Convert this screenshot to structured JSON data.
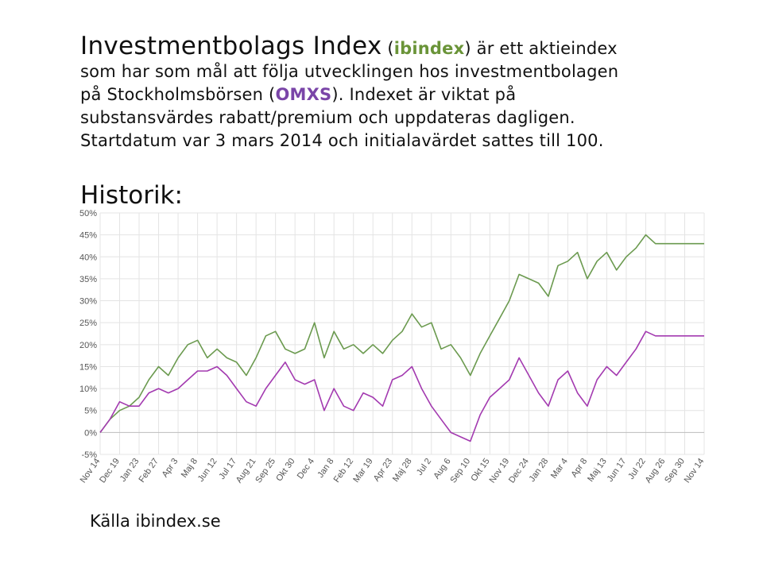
{
  "intro": {
    "title": "Investmentbolags Index",
    "paren_open": " (",
    "ibindex": "ibindex",
    "text1": ") är ett aktieindex",
    "line2": "som har som mål att följa utvecklingen hos investmentbolagen",
    "line3_pre": "på Stockholmsbörsen (",
    "omxs": "OMXS",
    "line3_post": "). Indexet är viktat på",
    "line4": "substansvärdes rabatt/premium och uppdateras dagligen.",
    "line5": "Startdatum var 3 mars 2014 och initialavärdet sattes till 100."
  },
  "heading": "Historik:",
  "source": "Källa ibindex.se",
  "colors": {
    "green": "#6a9438",
    "purple": "#7a45a8",
    "series_green": "#6b9a4f",
    "series_magenta": "#a33ab0"
  },
  "chart_data": {
    "type": "line",
    "ylim": [
      -5,
      50
    ],
    "yticks": [
      "50%",
      "45%",
      "40%",
      "35%",
      "30%",
      "25%",
      "20%",
      "15%",
      "10%",
      "5%",
      "0%",
      "-5%"
    ],
    "categories": [
      "Nov 14",
      "Dec 19",
      "Jan 23",
      "Feb 27",
      "Apr 3",
      "Maj 8",
      "Jun 12",
      "Jul 17",
      "Aug 21",
      "Sep 25",
      "Okt 30",
      "Dec 4",
      "Jan 8",
      "Feb 12",
      "Mar 19",
      "Apr 23",
      "Maj 28",
      "Jul 2",
      "Aug 6",
      "Sep 10",
      "Okt 15",
      "Nov 19",
      "Dec 24",
      "Jan 28",
      "Mar 4",
      "Apr 8",
      "Maj 13",
      "Jun 17",
      "Jul 22",
      "Aug 26",
      "Sep 30",
      "Nov 14"
    ],
    "grid": true,
    "series": [
      {
        "color": "#6b9a4f",
        "x": [
          0,
          0.5,
          1,
          1.5,
          2,
          2.5,
          3,
          3.5,
          4,
          4.5,
          5,
          5.5,
          6,
          6.5,
          7,
          7.5,
          8,
          8.5,
          9,
          9.5,
          10,
          10.5,
          11,
          11.5,
          12,
          12.5,
          13,
          13.5,
          14,
          14.5,
          15,
          15.5,
          16,
          16.5,
          17,
          17.5,
          18,
          18.5,
          19,
          19.5,
          20,
          20.5,
          21,
          21.5,
          22,
          22.5,
          23,
          23.5,
          24,
          24.5,
          25,
          25.5,
          26,
          26.5,
          27,
          27.5,
          28,
          28.5,
          29,
          29.5,
          30,
          30.5,
          31
        ],
        "values": [
          0,
          3,
          5,
          6,
          8,
          12,
          15,
          13,
          17,
          20,
          21,
          17,
          19,
          17,
          16,
          13,
          17,
          22,
          23,
          19,
          18,
          19,
          25,
          17,
          23,
          19,
          20,
          18,
          20,
          18,
          21,
          23,
          27,
          24,
          25,
          19,
          20,
          17,
          13,
          18,
          22,
          26,
          30,
          36,
          35,
          34,
          31,
          38,
          39,
          41,
          35,
          39,
          41,
          37,
          40,
          42,
          45,
          43,
          43,
          43,
          43,
          43,
          43
        ]
      },
      {
        "color": "#a33ab0",
        "x": [
          0,
          0.5,
          1,
          1.5,
          2,
          2.5,
          3,
          3.5,
          4,
          4.5,
          5,
          5.5,
          6,
          6.5,
          7,
          7.5,
          8,
          8.5,
          9,
          9.5,
          10,
          10.5,
          11,
          11.5,
          12,
          12.5,
          13,
          13.5,
          14,
          14.5,
          15,
          15.5,
          16,
          16.5,
          17,
          17.5,
          18,
          18.5,
          19,
          19.5,
          20,
          20.5,
          21,
          21.5,
          22,
          22.5,
          23,
          23.5,
          24,
          24.5,
          25,
          25.5,
          26,
          26.5,
          27,
          27.5,
          28,
          28.5,
          29,
          29.5,
          30,
          30.5,
          31
        ],
        "values": [
          0,
          3,
          7,
          6,
          6,
          9,
          10,
          9,
          10,
          12,
          14,
          14,
          15,
          13,
          10,
          7,
          6,
          10,
          13,
          16,
          12,
          11,
          12,
          5,
          10,
          6,
          5,
          9,
          8,
          6,
          12,
          13,
          15,
          10,
          6,
          3,
          0,
          -1,
          -2,
          4,
          8,
          10,
          12,
          17,
          13,
          9,
          6,
          12,
          14,
          9,
          6,
          12,
          15,
          13,
          16,
          19,
          23,
          22,
          22,
          22,
          22,
          22,
          22
        ]
      }
    ]
  }
}
